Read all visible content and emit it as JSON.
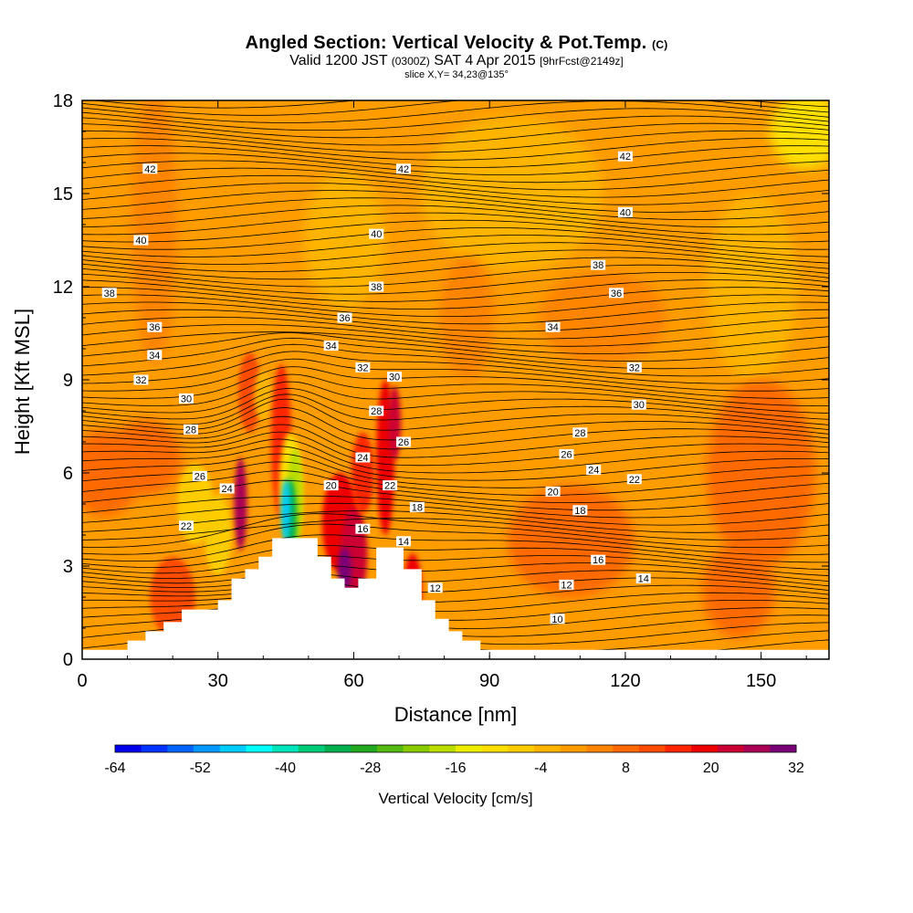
{
  "header": {
    "title_main": "Angled Section: Vertical Velocity & Pot.Temp.",
    "title_unit": "(C)",
    "subtitle_a": "Valid 1200 JST",
    "subtitle_b": "(0300Z)",
    "subtitle_c": "SAT 4 Apr 2015",
    "subtitle_d": "[9hrFcst@2149z]",
    "slice": "slice X,Y= 34,23@135°"
  },
  "chart_data": {
    "type": "heatmap",
    "xlabel": "Distance [nm]",
    "ylabel": "Height [Kft MSL]",
    "xlim": [
      0,
      165
    ],
    "ylim": [
      0,
      18
    ],
    "x_ticks": [
      "0",
      "30",
      "60",
      "90",
      "120",
      "150"
    ],
    "y_ticks": [
      "0",
      "3",
      "6",
      "9",
      "12",
      "15",
      "18"
    ],
    "colorbar": {
      "label": "Vertical Velocity [cm/s]",
      "tick_labels": [
        "-64",
        "-52",
        "-40",
        "-28",
        "-16",
        "-4",
        "8",
        "20",
        "32"
      ],
      "range": [
        -64,
        32
      ],
      "step": 4,
      "colors": [
        "#0000ee",
        "#0033ff",
        "#0066ff",
        "#0099ff",
        "#00ccff",
        "#00ffff",
        "#00e5bb",
        "#00cc77",
        "#00b050",
        "#22aa22",
        "#55bb11",
        "#88cc00",
        "#bbdd00",
        "#eeee00",
        "#ffe000",
        "#ffcc00",
        "#ffb400",
        "#ff9c00",
        "#ff8400",
        "#ff6a00",
        "#ff4c00",
        "#ff2600",
        "#ee0000",
        "#cc0033",
        "#aa0055",
        "#7a0077"
      ]
    },
    "terrain_profile": [
      [
        0,
        0.3
      ],
      [
        10,
        0.3
      ],
      [
        10,
        0.6
      ],
      [
        14,
        0.6
      ],
      [
        14,
        0.9
      ],
      [
        18,
        0.9
      ],
      [
        18,
        1.2
      ],
      [
        22,
        1.2
      ],
      [
        22,
        1.6
      ],
      [
        30,
        1.6
      ],
      [
        30,
        1.9
      ],
      [
        33,
        1.9
      ],
      [
        33,
        2.6
      ],
      [
        36,
        2.6
      ],
      [
        36,
        2.9
      ],
      [
        39,
        2.9
      ],
      [
        39,
        3.3
      ],
      [
        42,
        3.3
      ],
      [
        42,
        3.9
      ],
      [
        52,
        3.9
      ],
      [
        52,
        3.3
      ],
      [
        55,
        3.3
      ],
      [
        55,
        2.6
      ],
      [
        58,
        2.6
      ],
      [
        58,
        2.3
      ],
      [
        61,
        2.3
      ],
      [
        61,
        2.6
      ],
      [
        65,
        2.6
      ],
      [
        65,
        3.6
      ],
      [
        71,
        3.6
      ],
      [
        71,
        2.9
      ],
      [
        75,
        2.9
      ],
      [
        75,
        1.9
      ],
      [
        78,
        1.9
      ],
      [
        78,
        1.3
      ],
      [
        81,
        1.3
      ],
      [
        81,
        0.9
      ],
      [
        84,
        0.9
      ],
      [
        84,
        0.6
      ],
      [
        88,
        0.6
      ],
      [
        88,
        0.3
      ],
      [
        165,
        0.3
      ]
    ],
    "theta_contour_labels": [
      {
        "value": "42",
        "x": 15,
        "y": 15.8
      },
      {
        "value": "42",
        "x": 71,
        "y": 15.8
      },
      {
        "value": "42",
        "x": 120,
        "y": 16.2
      },
      {
        "value": "40",
        "x": 13,
        "y": 13.5
      },
      {
        "value": "40",
        "x": 65,
        "y": 13.7
      },
      {
        "value": "40",
        "x": 120,
        "y": 14.4
      },
      {
        "value": "38",
        "x": 65,
        "y": 12.0
      },
      {
        "value": "38",
        "x": 114,
        "y": 12.7
      },
      {
        "value": "38",
        "x": 6,
        "y": 11.8
      },
      {
        "value": "36",
        "x": 118,
        "y": 11.8
      },
      {
        "value": "36",
        "x": 16,
        "y": 10.7
      },
      {
        "value": "36",
        "x": 58,
        "y": 11.0
      },
      {
        "value": "34",
        "x": 104,
        "y": 10.7
      },
      {
        "value": "34",
        "x": 16,
        "y": 9.8
      },
      {
        "value": "34",
        "x": 55,
        "y": 10.1
      },
      {
        "value": "32",
        "x": 122,
        "y": 9.4
      },
      {
        "value": "32",
        "x": 13,
        "y": 9.0
      },
      {
        "value": "32",
        "x": 62,
        "y": 9.4
      },
      {
        "value": "30",
        "x": 69,
        "y": 9.1
      },
      {
        "value": "30",
        "x": 23,
        "y": 8.4
      },
      {
        "value": "30",
        "x": 123,
        "y": 8.2
      },
      {
        "value": "28",
        "x": 65,
        "y": 8.0
      },
      {
        "value": "28",
        "x": 24,
        "y": 7.4
      },
      {
        "value": "28",
        "x": 110,
        "y": 7.3
      },
      {
        "value": "26",
        "x": 71,
        "y": 7.0
      },
      {
        "value": "26",
        "x": 107,
        "y": 6.6
      },
      {
        "value": "26",
        "x": 26,
        "y": 5.9
      },
      {
        "value": "24",
        "x": 62,
        "y": 6.5
      },
      {
        "value": "24",
        "x": 113,
        "y": 6.1
      },
      {
        "value": "24",
        "x": 32,
        "y": 5.5
      },
      {
        "value": "22",
        "x": 122,
        "y": 5.8
      },
      {
        "value": "22",
        "x": 68,
        "y": 5.6
      },
      {
        "value": "22",
        "x": 23,
        "y": 4.3
      },
      {
        "value": "20",
        "x": 55,
        "y": 5.6
      },
      {
        "value": "20",
        "x": 104,
        "y": 5.4
      },
      {
        "value": "18",
        "x": 74,
        "y": 4.9
      },
      {
        "value": "18",
        "x": 110,
        "y": 4.8
      },
      {
        "value": "16",
        "x": 62,
        "y": 4.2
      },
      {
        "value": "16",
        "x": 114,
        "y": 3.2
      },
      {
        "value": "14",
        "x": 71,
        "y": 3.8
      },
      {
        "value": "14",
        "x": 124,
        "y": 2.6
      },
      {
        "value": "12",
        "x": 78,
        "y": 2.3
      },
      {
        "value": "12",
        "x": 107,
        "y": 2.4
      },
      {
        "value": "10",
        "x": 105,
        "y": 1.3
      }
    ]
  }
}
